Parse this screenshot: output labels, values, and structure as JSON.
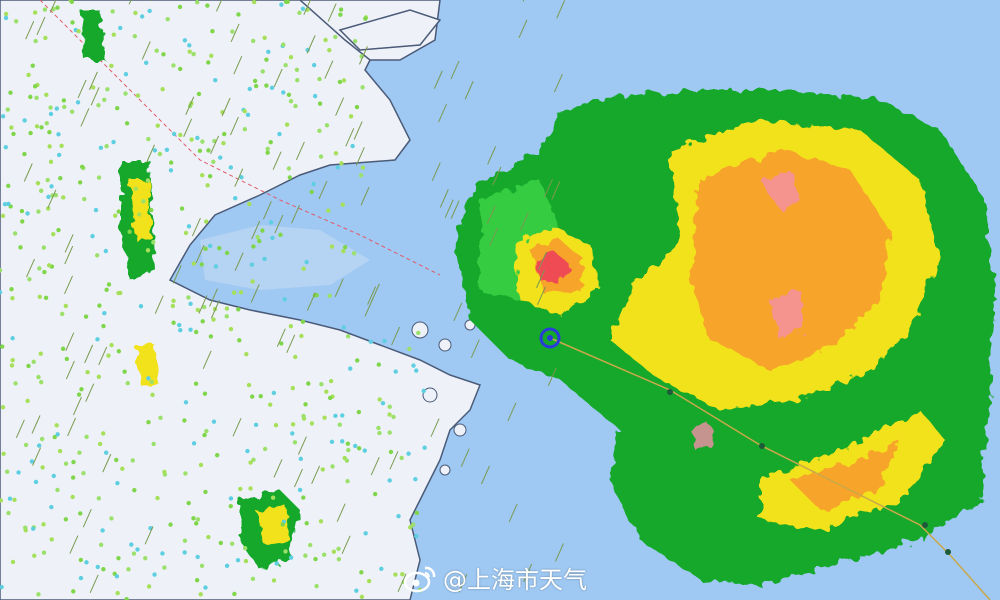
{
  "watermark": {
    "text": "@上海市天气",
    "logo": "weibo-logo"
  },
  "colors": {
    "sea": "#9fc9f3",
    "land": "#eef2f8",
    "coast": "#4a5a78",
    "radar_light_green": "#3fd44a",
    "radar_green": "#12a82a",
    "radar_yellow": "#f2e21a",
    "radar_orange": "#f7a42a",
    "radar_red": "#ef4b54",
    "radar_pink": "#f48fa8",
    "track": "#c9a84a",
    "typhoon_center": "#2a3cd8"
  }
}
